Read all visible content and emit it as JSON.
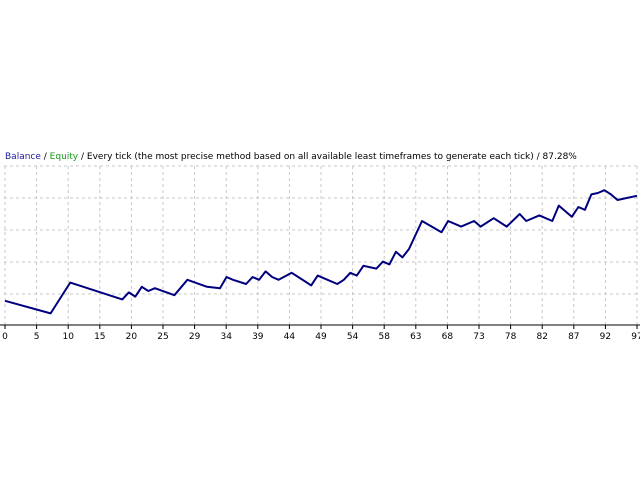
{
  "header": {
    "balance_label": "Balance",
    "sep1": " / ",
    "equity_label": "Equity",
    "sep2": " / ",
    "model_text": "Every tick (the most precise method based on all available least timeframes to generate each tick)",
    "sep3": " / ",
    "quality": "87.28%"
  },
  "colors": {
    "balance": "#1a1aa0",
    "equity": "#1a9a1a",
    "line": "#00007f",
    "grid": "#c8c8c8",
    "axis": "#000000"
  },
  "chart_data": {
    "type": "line",
    "title": "",
    "xlabel": "",
    "ylabel": "",
    "x_ticks": [
      "0",
      "5",
      "10",
      "15",
      "20",
      "25",
      "29",
      "34",
      "39",
      "44",
      "49",
      "54",
      "58",
      "63",
      "68",
      "73",
      "78",
      "82",
      "87",
      "92",
      "97"
    ],
    "xlim": [
      0,
      97
    ],
    "ylim": [
      0,
      100
    ],
    "grid": true,
    "series": [
      {
        "name": "Balance",
        "x": [
          0,
          7,
          10,
          18,
          19,
          20,
          21,
          22,
          23,
          26,
          28,
          31,
          33,
          34,
          35,
          37,
          38,
          39,
          40,
          41,
          42,
          44,
          47,
          48,
          49,
          51,
          52,
          53,
          54,
          55,
          57,
          58,
          59,
          60,
          61,
          62,
          64,
          67,
          68,
          70,
          72,
          73,
          75,
          77,
          79,
          80,
          82,
          84,
          85,
          87,
          88,
          89,
          90,
          91,
          92,
          93,
          94,
          97
        ],
        "y": [
          13,
          4,
          26,
          14,
          19,
          16,
          23,
          20,
          22,
          17,
          28,
          23,
          22,
          30,
          28,
          25,
          30,
          28,
          34,
          30,
          28,
          33,
          24,
          31,
          29,
          25,
          28,
          33,
          31,
          38,
          36,
          41,
          39,
          48,
          44,
          50,
          70,
          62,
          70,
          66,
          70,
          66,
          72,
          66,
          75,
          70,
          74,
          70,
          81,
          73,
          80,
          78,
          89,
          90,
          92,
          89,
          85,
          88
        ]
      }
    ]
  }
}
